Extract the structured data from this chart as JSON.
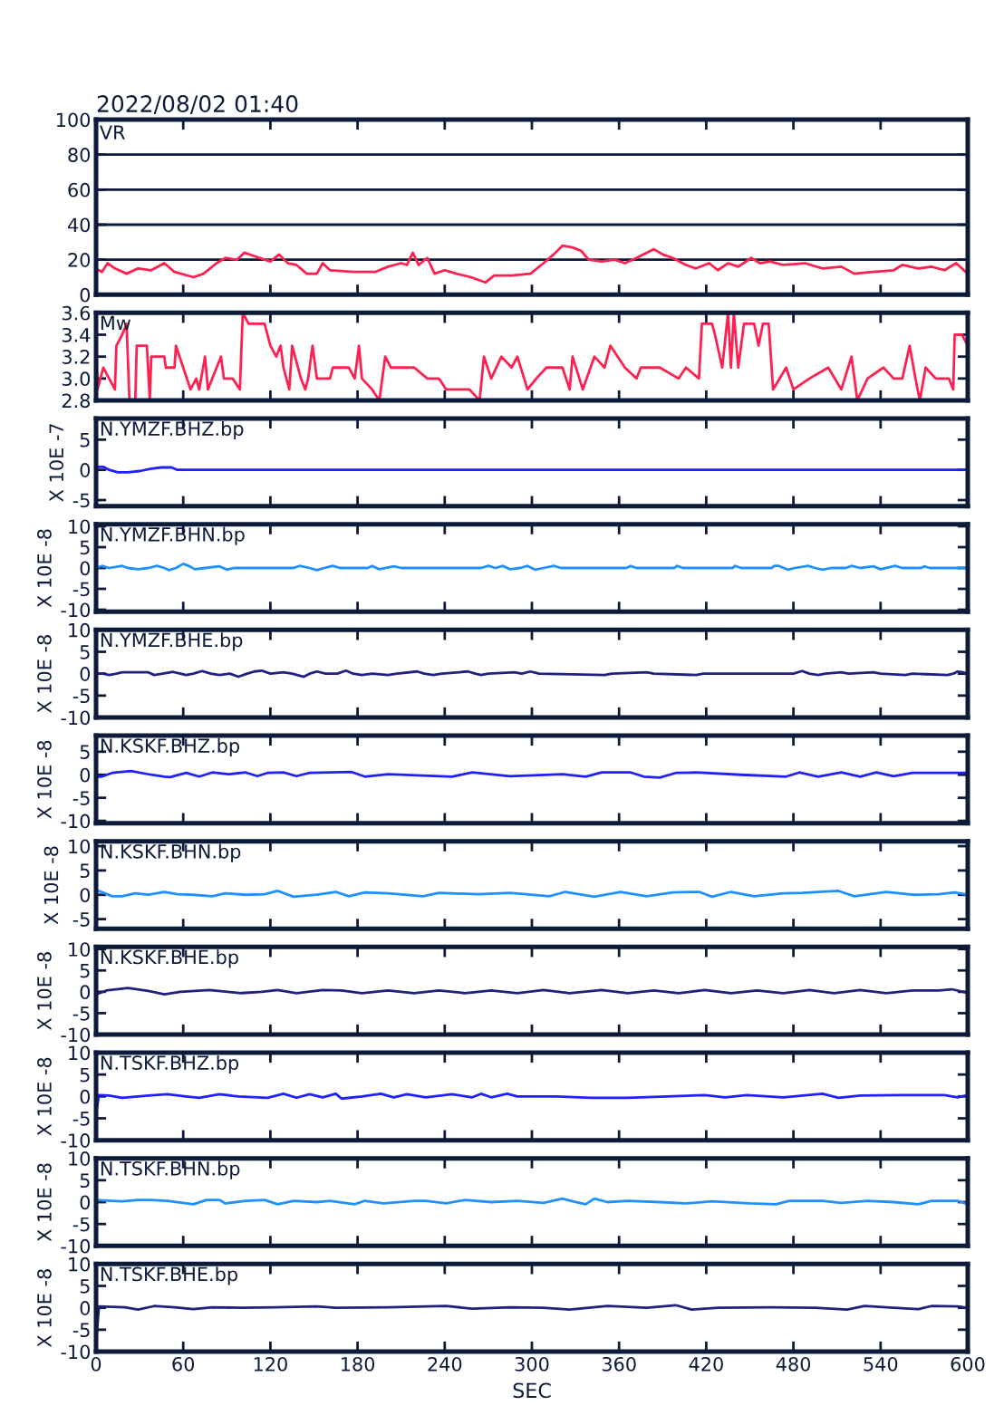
{
  "chart_data": [
    {
      "type": "line",
      "title": "2022/08/02 01:40",
      "annotations": [
        "VR"
      ],
      "x": [
        0,
        4,
        8,
        13,
        21,
        29,
        38,
        47,
        54,
        67,
        74,
        83,
        89,
        97,
        102,
        109,
        116,
        120,
        126,
        132,
        138,
        145,
        152,
        156,
        161,
        178,
        192,
        201,
        210,
        214,
        218,
        222,
        228,
        233,
        240,
        248,
        258,
        268,
        274,
        286,
        299,
        308,
        315,
        321,
        328,
        334,
        339,
        348,
        357,
        364,
        372,
        384,
        390,
        397,
        406,
        413,
        422,
        428,
        435,
        442,
        451,
        457,
        464,
        473,
        488,
        500,
        513,
        522,
        535,
        549,
        555,
        566,
        575,
        584,
        592,
        600
      ],
      "series": [
        {
          "color": "#ff2050",
          "values": [
            15,
            13,
            18,
            15,
            12,
            15,
            14,
            18,
            13,
            10,
            12,
            18,
            21,
            20,
            24,
            22,
            20,
            19,
            23,
            18,
            17,
            12,
            12,
            18,
            14,
            13,
            13,
            16,
            18,
            17,
            24,
            17,
            21,
            12,
            14,
            12,
            10,
            7,
            11,
            11,
            12,
            18,
            23,
            28,
            27,
            25,
            20,
            19,
            20,
            18,
            21,
            26,
            23,
            21,
            17,
            15,
            18,
            14,
            18,
            16,
            21,
            18,
            19,
            17,
            18,
            15,
            16,
            12,
            13,
            14,
            17,
            15,
            16,
            14,
            18,
            12
          ]
        }
      ],
      "xlim": [
        0,
        600
      ],
      "xticks": [
        0,
        60,
        120,
        180,
        240,
        300,
        360,
        420,
        480,
        540,
        600
      ],
      "ylim": [
        0,
        100
      ],
      "yticks": [
        0,
        20,
        40,
        60,
        80,
        100
      ],
      "grid": "y",
      "tick_labels": "y"
    },
    {
      "type": "line",
      "annotations": [
        "Mw"
      ],
      "x": [
        0,
        1,
        3,
        5,
        9,
        13,
        14,
        18,
        21,
        23,
        27,
        28,
        35,
        37,
        38,
        47,
        48,
        54,
        55,
        60,
        65,
        69,
        71,
        75,
        77,
        80,
        86,
        88,
        94,
        99,
        101,
        105,
        108,
        116,
        120,
        124,
        127,
        129,
        133,
        135,
        141,
        144,
        146,
        149,
        152,
        161,
        163,
        174,
        178,
        181,
        183,
        190,
        195,
        199,
        203,
        219,
        228,
        236,
        241,
        257,
        264,
        267,
        272,
        279,
        286,
        290,
        297,
        303,
        310,
        321,
        326,
        328,
        335,
        343,
        350,
        354,
        364,
        372,
        375,
        388,
        401,
        406,
        415,
        417,
        424,
        426,
        431,
        435,
        437,
        439,
        442,
        446,
        453,
        456,
        459,
        463,
        466,
        475,
        480,
        491,
        504,
        513,
        520,
        524,
        531,
        542,
        549,
        555,
        560,
        564,
        567,
        571,
        578,
        587,
        590,
        591,
        596,
        600
      ],
      "series": [
        {
          "color": "#ff2050",
          "values": [
            3.4,
            2.9,
            3.0,
            3.1,
            3.0,
            2.9,
            3.3,
            3.4,
            3.5,
            2.8,
            2.8,
            3.3,
            3.3,
            2.8,
            3.2,
            3.2,
            3.1,
            3.1,
            3.3,
            3.1,
            2.9,
            3.0,
            2.9,
            3.2,
            2.9,
            3.0,
            3.2,
            3.0,
            3.0,
            2.9,
            3.6,
            3.5,
            3.5,
            3.5,
            3.3,
            3.2,
            3.3,
            3.1,
            2.9,
            3.3,
            3.0,
            2.9,
            3.0,
            3.3,
            3.0,
            3.0,
            3.1,
            3.1,
            3.0,
            3.3,
            3.0,
            2.9,
            2.8,
            3.2,
            3.1,
            3.1,
            3.0,
            3.0,
            2.9,
            2.9,
            2.8,
            3.2,
            3.0,
            3.2,
            3.1,
            3.2,
            2.9,
            3.0,
            3.1,
            3.1,
            2.9,
            3.2,
            2.9,
            3.2,
            3.1,
            3.3,
            3.1,
            3.0,
            3.1,
            3.1,
            3.0,
            3.1,
            3.0,
            3.5,
            3.5,
            3.4,
            3.1,
            3.6,
            3.1,
            3.6,
            3.1,
            3.5,
            3.5,
            3.3,
            3.5,
            3.5,
            2.9,
            3.1,
            2.9,
            3.0,
            3.1,
            2.9,
            3.2,
            2.8,
            3.0,
            3.1,
            3.0,
            3.0,
            3.3,
            3.0,
            2.8,
            3.1,
            3.0,
            3.0,
            2.9,
            3.4,
            3.4,
            3.3
          ]
        }
      ],
      "xlim": [
        0,
        600
      ],
      "xticks": [
        0,
        60,
        120,
        180,
        240,
        300,
        360,
        420,
        480,
        540,
        600
      ],
      "ylim": [
        2.8,
        3.6
      ],
      "yticks": [
        2.8,
        {
          "value": 3,
          "label": "3.0"
        },
        3.2,
        3.4,
        3.6
      ],
      "tick_labels": "y"
    },
    {
      "type": "line",
      "annotations": [
        "N.YMZF.BHZ.bp"
      ],
      "ylabel": "X 10E -7",
      "x": [
        0,
        0,
        0.5,
        5,
        9,
        15,
        22,
        30,
        38,
        45,
        52,
        56,
        600
      ],
      "series": [
        {
          "color": "#2020ff",
          "values": [
            8.5,
            -6,
            0.5,
            0.5,
            0,
            -0.4,
            -0.4,
            -0.2,
            0.2,
            0.4,
            0.4,
            0,
            0
          ]
        }
      ],
      "xlim": [
        0,
        600
      ],
      "xticks": [
        0,
        60,
        120,
        180,
        240,
        300,
        360,
        420,
        480,
        540,
        600
      ],
      "ylim": [
        -6,
        8.5
      ],
      "yticks": [
        -5,
        0,
        5
      ],
      "tick_labels": "y"
    },
    {
      "type": "line",
      "annotations": [
        "N.YMZF.BHN.bp"
      ],
      "ylabel": "X 10E -8",
      "x": [
        0,
        4,
        9,
        18,
        22,
        29,
        36,
        42,
        47,
        50,
        55,
        60,
        65,
        68,
        75,
        85,
        90,
        95,
        136,
        140,
        147,
        152,
        157,
        163,
        168,
        187,
        190,
        195,
        205,
        210,
        265,
        270,
        275,
        280,
        285,
        292,
        297,
        302,
        308,
        315,
        320,
        365,
        368,
        372,
        398,
        400,
        404,
        438,
        440,
        444,
        465,
        467,
        470,
        476,
        481,
        490,
        495,
        500,
        506,
        516,
        520,
        526,
        535,
        540,
        550,
        555,
        568,
        570,
        574,
        600
      ],
      "series": [
        {
          "color": "#2090ff",
          "values": [
            0,
            0.5,
            0,
            0.5,
            0,
            -0.3,
            0,
            0.5,
            0,
            -0.5,
            0,
            1,
            0.3,
            -0.3,
            0,
            0.4,
            -0.4,
            0,
            0,
            0.5,
            0,
            -0.5,
            0,
            0.5,
            0,
            0,
            0.5,
            -0.3,
            0.4,
            0,
            0,
            0.5,
            0,
            0.5,
            -0.3,
            0,
            0.5,
            -0.4,
            0,
            0.5,
            0,
            0,
            0.5,
            0,
            0,
            0.5,
            0,
            0,
            0.5,
            0,
            0,
            0.5,
            0.5,
            -0.4,
            0,
            0.5,
            0,
            -0.4,
            0,
            0,
            0.5,
            0,
            0.4,
            -0.3,
            0.5,
            0,
            0,
            0.4,
            0,
            0
          ]
        }
      ],
      "xlim": [
        0,
        600
      ],
      "xticks": [
        0,
        60,
        120,
        180,
        240,
        300,
        360,
        420,
        480,
        540,
        600
      ],
      "ylim": [
        -10.5,
        10.5
      ],
      "yticks": [
        -10,
        -5,
        0,
        5,
        10
      ],
      "tick_labels": "y"
    },
    {
      "type": "line",
      "annotations": [
        "N.YMZF.BHE.bp"
      ],
      "ylabel": "X 10E -8",
      "x": [
        0,
        5,
        9,
        14,
        18,
        36,
        40,
        46,
        53,
        58,
        62,
        67,
        73,
        79,
        85,
        92,
        98,
        104,
        109,
        114,
        120,
        129,
        135,
        143,
        147,
        152,
        158,
        166,
        172,
        177,
        183,
        190,
        201,
        207,
        221,
        226,
        232,
        238,
        256,
        261,
        265,
        270,
        288,
        293,
        299,
        305,
        350,
        355,
        379,
        384,
        413,
        418,
        480,
        486,
        491,
        497,
        502,
        513,
        518,
        535,
        540,
        557,
        562,
        586,
        590,
        593,
        597,
        600
      ],
      "series": [
        {
          "color": "#202080",
          "values": [
            0,
            0,
            -0.3,
            0,
            0.3,
            0.3,
            -0.3,
            0,
            0.4,
            0,
            -0.3,
            0,
            0.6,
            0,
            -0.3,
            0,
            -0.7,
            0,
            0.5,
            0.7,
            0,
            0.3,
            0,
            -0.7,
            0,
            0.5,
            0,
            0,
            0.7,
            0,
            -0.3,
            0,
            -0.3,
            0,
            0.5,
            0,
            -0.3,
            0,
            0.5,
            0,
            -0.3,
            0,
            0.3,
            0,
            0.5,
            0,
            -0.3,
            0,
            0.3,
            0,
            -0.3,
            0,
            0,
            0.6,
            0,
            -0.3,
            0,
            0.3,
            0,
            0.3,
            0,
            -0.3,
            0,
            -0.3,
            0,
            0.5,
            0.3,
            0
          ]
        }
      ],
      "xlim": [
        0,
        600
      ],
      "xticks": [
        0,
        60,
        120,
        180,
        240,
        300,
        360,
        420,
        480,
        540,
        600
      ],
      "ylim": [
        -10,
        10
      ],
      "yticks": [
        -10,
        -5,
        0,
        5,
        10
      ],
      "tick_labels": "y"
    },
    {
      "type": "line",
      "annotations": [
        "N.KSKF.BHZ.bp"
      ],
      "ylabel": "X 10E -8",
      "x": [
        0,
        0,
        0.5,
        4,
        11,
        24,
        38,
        47,
        51,
        62,
        71,
        80,
        91,
        103,
        111,
        118,
        129,
        138,
        147,
        176,
        185,
        201,
        245,
        259,
        285,
        321,
        337,
        348,
        368,
        377,
        388,
        399,
        413,
        444,
        475,
        484,
        497,
        513,
        526,
        537,
        549,
        562,
        600
      ],
      "series": [
        {
          "color": "#2020ff",
          "values": [
            8.5,
            -10.5,
            -0.4,
            -0.4,
            0.4,
            0.8,
            0,
            -0.4,
            -0.5,
            0.4,
            -0.4,
            0.5,
            0.1,
            0.5,
            -0.3,
            0.4,
            0.5,
            -0.3,
            0.4,
            0.6,
            -0.4,
            0.1,
            -0.4,
            0.5,
            -0.3,
            0.1,
            -0.4,
            0.5,
            0.5,
            -0.4,
            -0.6,
            0.4,
            0.5,
            0,
            -0.4,
            0.5,
            -0.4,
            0.5,
            -0.4,
            0.5,
            -0.3,
            0.4,
            0.4
          ]
        }
      ],
      "xlim": [
        0,
        600
      ],
      "xticks": [
        0,
        60,
        120,
        180,
        240,
        300,
        360,
        420,
        480,
        540,
        600
      ],
      "ylim": [
        -10.5,
        8.5
      ],
      "yticks": [
        -10,
        -5,
        0,
        5
      ],
      "tick_labels": "y"
    },
    {
      "type": "line",
      "annotations": [
        "N.KSKF.BHN.bp"
      ],
      "ylabel": "X 10E -8",
      "x": [
        0,
        0,
        0.5,
        4.5,
        11,
        18,
        27,
        36,
        47,
        56,
        67,
        80,
        89,
        103,
        116,
        125,
        136,
        152,
        165,
        174,
        185,
        201,
        225,
        236,
        263,
        285,
        312,
        323,
        343,
        361,
        379,
        397,
        415,
        424,
        437,
        453,
        473,
        486,
        511,
        522,
        544,
        562,
        580,
        591,
        600
      ],
      "series": [
        {
          "color": "#2090ff",
          "values": [
            11,
            -7,
            0.9,
            0.5,
            -0.3,
            -0.3,
            0.3,
            0,
            0.6,
            0.1,
            0,
            -0.3,
            0.3,
            0,
            0.1,
            0.8,
            -0.4,
            0,
            0.6,
            -0.3,
            0.5,
            0.3,
            -0.3,
            0.4,
            0.1,
            0.4,
            -0.3,
            0.6,
            -0.4,
            0.6,
            -0.3,
            0.5,
            0.6,
            -0.4,
            0.6,
            -0.3,
            0.3,
            0.4,
            0.8,
            -0.3,
            0.6,
            0,
            0.1,
            0.5,
            0
          ]
        }
      ],
      "xlim": [
        0,
        600
      ],
      "xticks": [
        0,
        60,
        120,
        180,
        240,
        300,
        360,
        420,
        480,
        540,
        600
      ],
      "ylim": [
        -7,
        11
      ],
      "yticks": [
        -5,
        0,
        5,
        10
      ],
      "tick_labels": "y"
    },
    {
      "type": "line",
      "annotations": [
        "N.KSKF.BHE.bp"
      ],
      "ylabel": "X 10E -8",
      "x": [
        0,
        7,
        22,
        36,
        47,
        58,
        78,
        100,
        114,
        125,
        138,
        156,
        169,
        183,
        201,
        219,
        236,
        254,
        272,
        290,
        308,
        326,
        348,
        366,
        384,
        401,
        419,
        437,
        455,
        473,
        491,
        508,
        526,
        544,
        562,
        580,
        589,
        600
      ],
      "series": [
        {
          "color": "#202080",
          "values": [
            -0.6,
            0.3,
            0.9,
            0.2,
            -0.6,
            0,
            0.4,
            -0.3,
            0,
            0.4,
            -0.3,
            0.4,
            0.3,
            -0.3,
            0.3,
            -0.3,
            0.3,
            -0.3,
            0.3,
            -0.3,
            0.4,
            -0.3,
            0.4,
            -0.3,
            0.3,
            -0.3,
            0.4,
            -0.3,
            0.3,
            -0.3,
            0.4,
            -0.3,
            0.4,
            -0.3,
            0.3,
            0.3,
            0.6,
            -0.3
          ]
        }
      ],
      "xlim": [
        0,
        600
      ],
      "xticks": [
        0,
        60,
        120,
        180,
        240,
        300,
        360,
        420,
        480,
        540,
        600
      ],
      "ylim": [
        -10,
        10.5
      ],
      "yticks": [
        -10,
        -5,
        0,
        5,
        10
      ],
      "tick_labels": "y"
    },
    {
      "type": "line",
      "annotations": [
        "N.TSKF.BHZ.bp"
      ],
      "ylabel": "X 10E -8",
      "x": [
        0,
        0,
        2,
        9,
        18,
        36,
        49,
        62,
        71,
        85,
        98,
        118,
        129,
        138,
        147,
        156,
        165,
        169,
        183,
        196,
        205,
        214,
        227,
        245,
        259,
        265,
        272,
        283,
        290,
        317,
        341,
        366,
        393,
        419,
        433,
        448,
        473,
        500,
        511,
        526,
        553,
        584,
        593,
        600
      ],
      "series": [
        {
          "color": "#2020ff",
          "values": [
            6.5,
            -4,
            0.3,
            0.2,
            -0.3,
            0.2,
            0.5,
            0,
            -0.3,
            0.5,
            0,
            -0.3,
            0.6,
            -0.3,
            0.5,
            -0.2,
            0.6,
            -0.5,
            0,
            0.6,
            -0.2,
            0.5,
            -0.2,
            0.5,
            -0.2,
            0.6,
            -0.2,
            0.6,
            0,
            0,
            -0.3,
            -0.3,
            0,
            0.3,
            -0.2,
            0.3,
            -0.2,
            0.6,
            -0.3,
            0.2,
            0.3,
            0.3,
            -0.2,
            0.3
          ]
        }
      ],
      "xlim": [
        0,
        600
      ],
      "xticks": [
        0,
        60,
        120,
        180,
        240,
        300,
        360,
        420,
        480,
        540,
        600
      ],
      "ylim": [
        -10,
        10
      ],
      "yticks": [
        -10,
        -5,
        0,
        5,
        10
      ],
      "tick_labels": "y"
    },
    {
      "type": "line",
      "annotations": [
        "N.TSKF.BHN.bp"
      ],
      "ylabel": "X 10E -8",
      "x": [
        0,
        11,
        18,
        29,
        38,
        49,
        67,
        76,
        85,
        89,
        103,
        116,
        125,
        136,
        152,
        161,
        178,
        185,
        198,
        219,
        227,
        241,
        254,
        272,
        290,
        308,
        321,
        328,
        337,
        343,
        352,
        366,
        388,
        406,
        424,
        450,
        468,
        477,
        500,
        513,
        531,
        549,
        566,
        575,
        593,
        600
      ],
      "series": [
        {
          "color": "#2090ff",
          "values": [
            0.5,
            0.3,
            0.2,
            0.5,
            0.5,
            0.3,
            -0.5,
            0.5,
            0.5,
            -0.3,
            0.3,
            0.5,
            -0.5,
            0.3,
            0,
            0.3,
            -0.5,
            0.3,
            -0.3,
            0.3,
            0.3,
            -0.3,
            0.5,
            0,
            0.3,
            -0.2,
            0.8,
            0.2,
            -0.5,
            0.8,
            0,
            0.3,
            0,
            -0.3,
            0.2,
            -0.3,
            -0.5,
            0.3,
            0.3,
            -0.2,
            0.3,
            0,
            -0.5,
            0.3,
            0.3,
            -0.5
          ]
        }
      ],
      "xlim": [
        0,
        600
      ],
      "xticks": [
        0,
        60,
        120,
        180,
        240,
        300,
        360,
        420,
        480,
        540,
        600
      ],
      "ylim": [
        -10,
        10
      ],
      "yticks": [
        -10,
        -5,
        0,
        5,
        10
      ],
      "tick_labels": "y"
    },
    {
      "type": "line",
      "annotations": [
        "N.TSKF.BHE.bp"
      ],
      "ylabel": "X 10E -8",
      "xlabel": "SEC",
      "x": [
        0,
        0,
        2,
        20,
        29,
        40,
        54,
        67,
        80,
        100,
        123,
        152,
        165,
        201,
        241,
        259,
        285,
        308,
        326,
        352,
        379,
        399,
        410,
        428,
        464,
        495,
        517,
        529,
        549,
        566,
        575,
        593,
        600
      ],
      "series": [
        {
          "color": "#202080",
          "values": [
            5,
            -8,
            0.3,
            0.1,
            -0.4,
            0.4,
            0.1,
            -0.3,
            0.1,
            0,
            0.1,
            0.3,
            0,
            0.1,
            0.4,
            -0.2,
            0.1,
            0,
            -0.4,
            0.4,
            0,
            0.6,
            -0.4,
            0,
            0.1,
            0,
            -0.4,
            0.4,
            0,
            -0.3,
            0.4,
            0.3,
            0
          ]
        }
      ],
      "xlim": [
        0,
        600
      ],
      "xticks": [
        0,
        60,
        120,
        180,
        240,
        300,
        360,
        420,
        480,
        540,
        600
      ],
      "ylim": [
        -10,
        10
      ],
      "yticks": [
        -10,
        -5,
        0,
        5,
        10
      ]
    }
  ]
}
